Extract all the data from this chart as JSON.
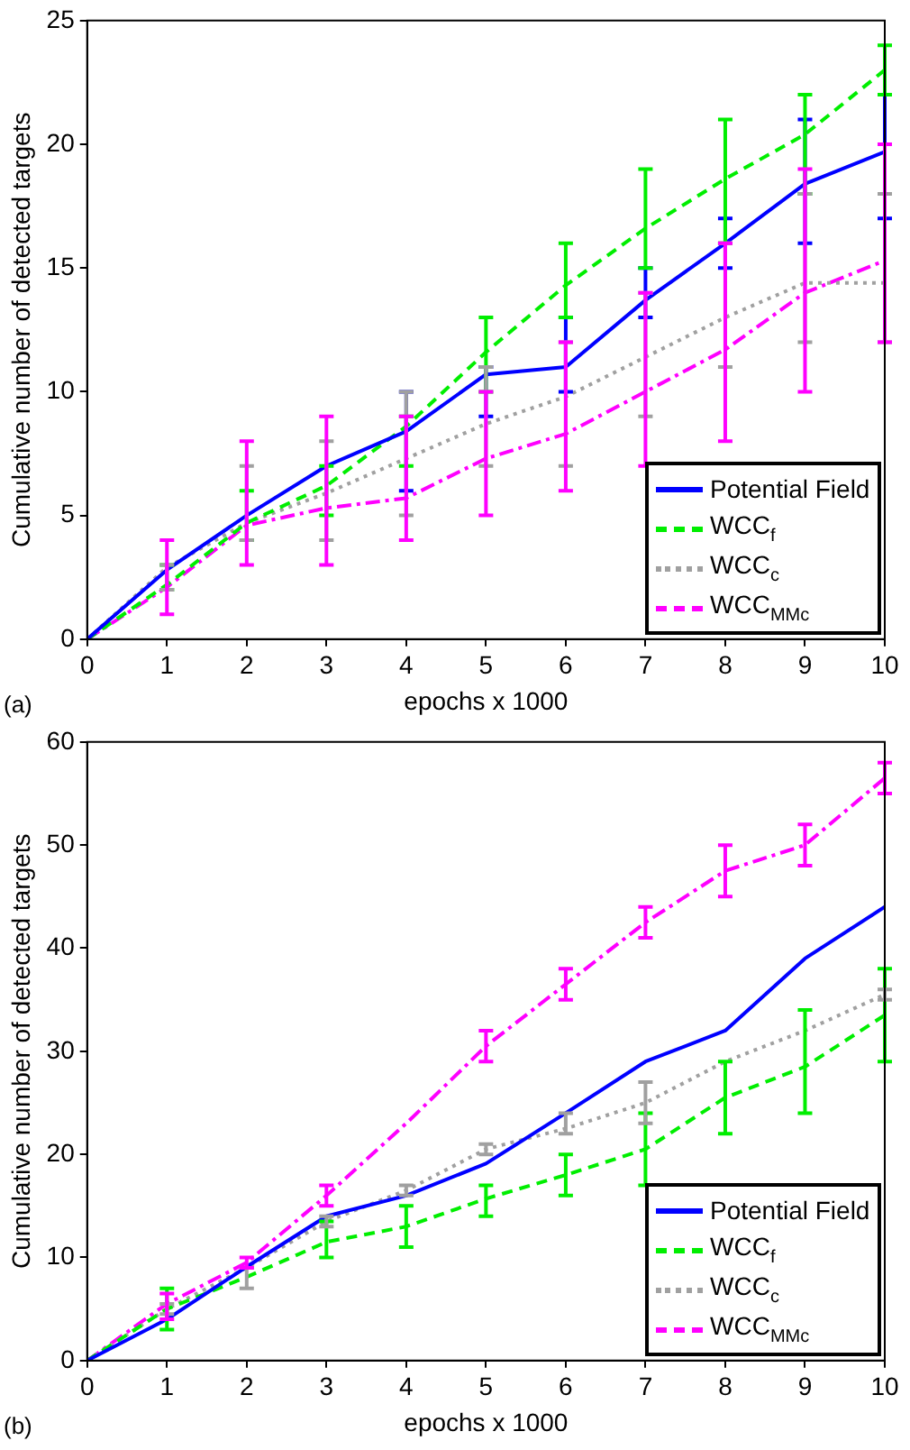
{
  "chart_data": [
    {
      "type": "line",
      "xlabel": "epochs x 1000",
      "ylabel": "Cumulative number of detected targets",
      "x": [
        0,
        1,
        2,
        3,
        4,
        5,
        6,
        7,
        8,
        9,
        10
      ],
      "xlim": [
        0,
        10
      ],
      "xticks": [
        0,
        1,
        2,
        3,
        4,
        5,
        6,
        7,
        8,
        9,
        10
      ],
      "ylim": [
        0,
        25
      ],
      "yticks": [
        0,
        5,
        10,
        15,
        20,
        25
      ],
      "grid": false,
      "legend": "bottom right",
      "marker": "none",
      "annotations": [
        "(a)"
      ],
      "series": [
        {
          "name": "Potential Field",
          "color": "#0000ff",
          "line_style": "solid",
          "values": [
            0,
            2.8,
            5,
            7,
            8.4,
            10.7,
            11,
            13.7,
            16,
            18.4,
            19.7
          ],
          "errors": [
            null,
            null,
            null,
            null,
            [
              6,
              10
            ],
            [
              9,
              11
            ],
            [
              10,
              13
            ],
            [
              13,
              15
            ],
            [
              15,
              17
            ],
            [
              16,
              21
            ],
            [
              17,
              22
            ]
          ]
        },
        {
          "name": "WCC$_{f}$",
          "color": "#00ee00",
          "line_style": "dashed",
          "values": [
            0,
            2.2,
            4.7,
            6.2,
            8.6,
            11.6,
            14.3,
            16.6,
            18.6,
            20.4,
            23
          ],
          "errors": [
            null,
            [
              2,
              3
            ],
            [
              4,
              6
            ],
            [
              5,
              7
            ],
            [
              7,
              9
            ],
            [
              10,
              13
            ],
            [
              13,
              16
            ],
            [
              15,
              19
            ],
            [
              16,
              21
            ],
            [
              18,
              22
            ],
            [
              22,
              24
            ]
          ]
        },
        {
          "name": "WCC$_{c}$",
          "color": "#a0a0a0",
          "line_style": "dotted",
          "values": [
            0,
            2.9,
            4.7,
            5.9,
            7.3,
            8.7,
            9.8,
            11.4,
            13,
            14.4,
            14.4
          ],
          "errors": [
            null,
            [
              2,
              3
            ],
            [
              4,
              7
            ],
            [
              4,
              8
            ],
            [
              5,
              10
            ],
            [
              7,
              11
            ],
            [
              7,
              12
            ],
            [
              9,
              14
            ],
            [
              11,
              16
            ],
            [
              12,
              18
            ],
            [
              12,
              18
            ]
          ]
        },
        {
          "name": "WCC$_{MMc}$",
          "color": "#ff00ff",
          "line_style": "dashdot",
          "values": [
            0,
            2.1,
            4.6,
            5.3,
            5.7,
            7.3,
            8.3,
            10,
            11.7,
            14,
            15.3
          ],
          "errors": [
            null,
            [
              1,
              4
            ],
            [
              3,
              8
            ],
            [
              3,
              9
            ],
            [
              4,
              9
            ],
            [
              5,
              10
            ],
            [
              6,
              12
            ],
            [
              7,
              14
            ],
            [
              8,
              16
            ],
            [
              10,
              19
            ],
            [
              12,
              20
            ]
          ]
        }
      ]
    },
    {
      "type": "line",
      "xlabel": "epochs x 1000",
      "ylabel": "Cumulative number of detected targets",
      "x": [
        0,
        1,
        2,
        3,
        4,
        5,
        6,
        7,
        8,
        9,
        10
      ],
      "xlim": [
        0,
        10
      ],
      "xticks": [
        0,
        1,
        2,
        3,
        4,
        5,
        6,
        7,
        8,
        9,
        10
      ],
      "ylim": [
        0,
        60
      ],
      "yticks": [
        0,
        10,
        20,
        30,
        40,
        50,
        60
      ],
      "grid": false,
      "legend": "bottom right",
      "marker": "none",
      "annotations": [
        "(b)"
      ],
      "series": [
        {
          "name": "Potential Field",
          "color": "#0000ff",
          "line_style": "solid",
          "values": [
            0,
            4,
            9.1,
            14,
            16,
            19.1,
            24,
            29,
            32,
            39,
            44
          ]
        },
        {
          "name": "WCC$_{f}$",
          "color": "#00ee00",
          "line_style": "dashed",
          "values": [
            0,
            5,
            8.1,
            11.5,
            13,
            15.7,
            18,
            20.5,
            25.5,
            28.5,
            33.5
          ],
          "errors": [
            null,
            [
              3,
              7
            ],
            null,
            [
              10,
              13.5
            ],
            [
              11,
              15
            ],
            [
              14,
              17
            ],
            [
              16,
              20
            ],
            [
              17,
              24
            ],
            [
              22,
              29
            ],
            [
              24,
              34
            ],
            [
              29,
              38
            ]
          ]
        },
        {
          "name": "WCC$_{c}$",
          "color": "#a0a0a0",
          "line_style": "dotted",
          "values": [
            0,
            5,
            9,
            13.5,
            16.5,
            20.5,
            22.5,
            25,
            29,
            32,
            35.5
          ],
          "errors": [
            null,
            [
              4.5,
              5.5
            ],
            [
              7,
              9
            ],
            [
              13,
              14
            ],
            [
              16,
              17
            ],
            [
              20,
              21
            ],
            [
              22,
              24
            ],
            [
              23,
              27
            ],
            null,
            null,
            [
              35,
              36
            ]
          ]
        },
        {
          "name": "WCC$_{MMc}$",
          "color": "#ff00ff",
          "line_style": "dashdot",
          "values": [
            0,
            5.5,
            9.5,
            16,
            23,
            30.5,
            36.5,
            42.5,
            47.5,
            50,
            56.5
          ],
          "errors": [
            null,
            [
              4,
              6.5
            ],
            [
              9,
              10
            ],
            [
              15,
              17
            ],
            null,
            [
              29,
              32
            ],
            [
              35,
              38
            ],
            [
              41,
              44
            ],
            [
              45,
              50
            ],
            [
              48,
              52
            ],
            [
              55,
              58
            ]
          ]
        }
      ]
    }
  ]
}
